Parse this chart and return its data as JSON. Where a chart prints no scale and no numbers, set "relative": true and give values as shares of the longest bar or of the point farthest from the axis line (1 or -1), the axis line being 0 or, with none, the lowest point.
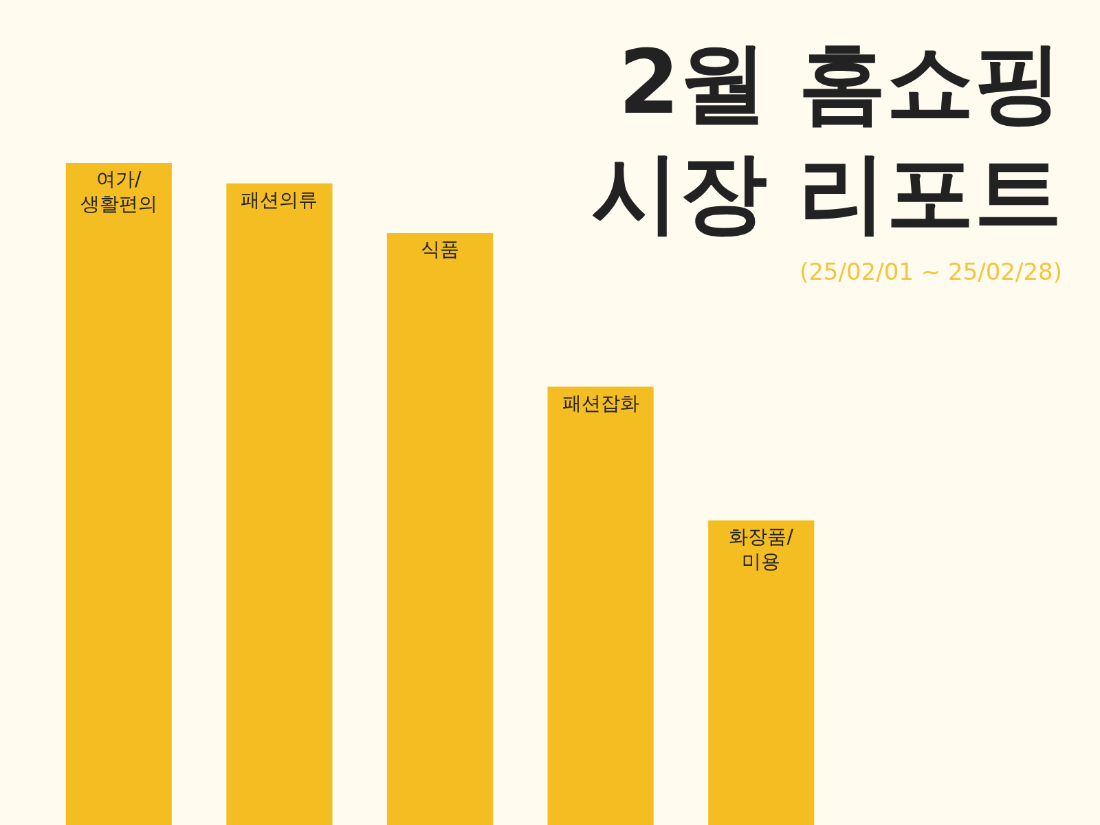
{
  "chart_data": {
    "type": "bar",
    "title": "2월 홈쇼핑\n시장 리포트",
    "subtitle": "(25/02/01 ~ 25/02/28)",
    "categories": [
      "여가/생활편의",
      "패션의류",
      "식품",
      "패션잡화",
      "화장품/미용"
    ],
    "values": [
      1,
      0.969,
      0.894,
      0.662,
      0.46
    ],
    "color": "#f4be22",
    "relative": true,
    "legend": false
  }
}
